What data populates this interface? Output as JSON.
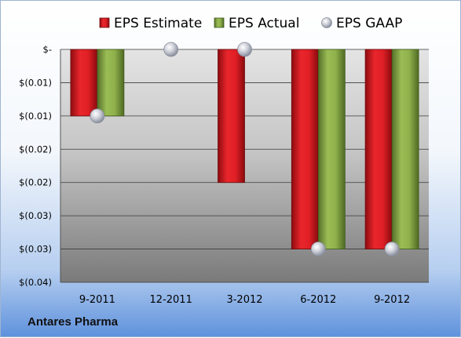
{
  "company": "Antares Pharma",
  "colors": {
    "estimate": "#d4141a",
    "actual": "#7e9e3a",
    "gaap": "#b4b8c4"
  },
  "chart_data": {
    "type": "bar",
    "categories": [
      "9-2011",
      "12-2011",
      "3-2012",
      "6-2012",
      "9-2012"
    ],
    "series": [
      {
        "name": "EPS Estimate",
        "values": [
          -0.01,
          null,
          -0.02,
          -0.03,
          -0.03
        ]
      },
      {
        "name": "EPS Actual",
        "values": [
          -0.01,
          null,
          null,
          -0.03,
          -0.03
        ]
      },
      {
        "name": "EPS GAAP",
        "values": [
          -0.01,
          0,
          0,
          -0.03,
          -0.03
        ]
      }
    ],
    "ylim": [
      -0.035,
      0
    ],
    "yticks": [
      {
        "value": 0,
        "label": "$-"
      },
      {
        "value": -0.005,
        "label": "$(0.01)"
      },
      {
        "value": -0.01,
        "label": "$(0.01)"
      },
      {
        "value": -0.015,
        "label": "$(0.02)"
      },
      {
        "value": -0.02,
        "label": "$(0.02)"
      },
      {
        "value": -0.025,
        "label": "$(0.03)"
      },
      {
        "value": -0.03,
        "label": "$(0.03)"
      },
      {
        "value": -0.035,
        "label": "$(0.04)"
      }
    ],
    "legend": "top",
    "grid": true
  }
}
